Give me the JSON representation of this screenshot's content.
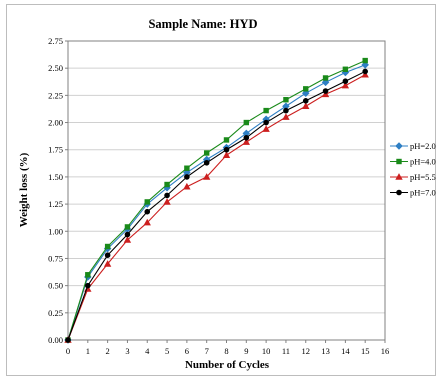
{
  "chart_data": {
    "type": "line",
    "title": "Sample Name: HYD",
    "xlabel": "Number of Cycles",
    "ylabel": "Weight loss  (%)",
    "xlim": [
      0,
      16
    ],
    "ylim": [
      0,
      2.75
    ],
    "x_ticks": [
      "0",
      "1",
      "2",
      "3",
      "4",
      "5",
      "6",
      "7",
      "8",
      "9",
      "10",
      "11",
      "12",
      "13",
      "14",
      "15",
      "16"
    ],
    "y_ticks": [
      "0.00",
      "0.25",
      "0.50",
      "0.75",
      "1.00",
      "1.25",
      "1.50",
      "1.75",
      "2.00",
      "2.25",
      "2.50",
      "2.75"
    ],
    "grid": true,
    "legend_position": "right",
    "x": [
      0,
      1,
      2,
      3,
      4,
      5,
      6,
      7,
      8,
      9,
      10,
      11,
      12,
      13,
      14,
      15
    ],
    "series": [
      {
        "name": "pH=2.0",
        "color": "#2e7fc4",
        "marker": "diamond",
        "values": [
          0,
          0.58,
          0.84,
          1.02,
          1.25,
          1.4,
          1.54,
          1.66,
          1.77,
          1.9,
          2.03,
          2.15,
          2.27,
          2.37,
          2.46,
          2.53
        ]
      },
      {
        "name": "pH=4.0",
        "color": "#1a8a1a",
        "marker": "square",
        "values": [
          0,
          0.6,
          0.86,
          1.04,
          1.27,
          1.43,
          1.58,
          1.72,
          1.84,
          2.0,
          2.11,
          2.21,
          2.31,
          2.41,
          2.49,
          2.57
        ]
      },
      {
        "name": "pH=5.5",
        "color": "#cc1f1f",
        "marker": "triangle",
        "values": [
          0,
          0.47,
          0.7,
          0.92,
          1.08,
          1.27,
          1.41,
          1.5,
          1.7,
          1.82,
          1.94,
          2.05,
          2.15,
          2.26,
          2.34,
          2.44
        ]
      },
      {
        "name": "pH=7.0",
        "color": "#000000",
        "marker": "circle",
        "values": [
          0,
          0.5,
          0.78,
          0.97,
          1.18,
          1.33,
          1.5,
          1.63,
          1.75,
          1.86,
          2.0,
          2.11,
          2.2,
          2.29,
          2.38,
          2.47
        ]
      }
    ]
  }
}
